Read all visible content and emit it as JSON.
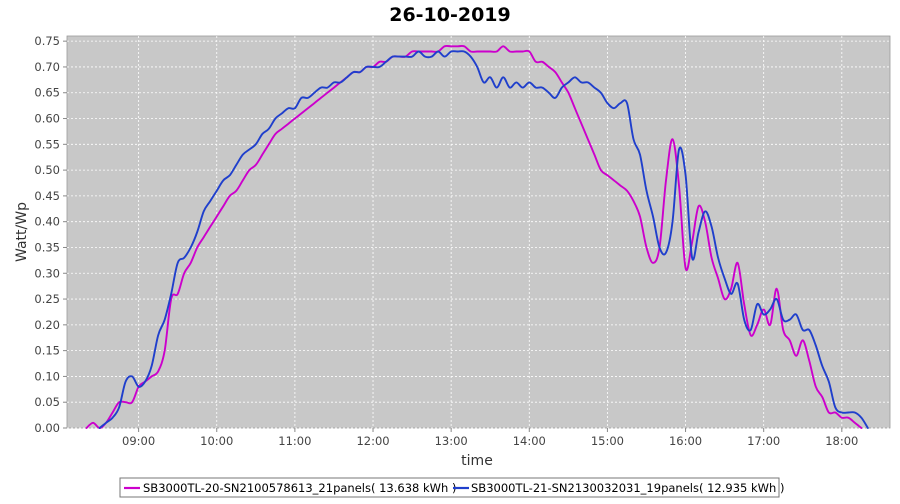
{
  "chart_data": {
    "type": "line",
    "title": "26-10-2019",
    "xlabel": "time",
    "ylabel": "Watt/Wp",
    "x_ticks": [
      "09:00",
      "10:00",
      "11:00",
      "12:00",
      "13:00",
      "14:00",
      "15:00",
      "16:00",
      "17:00",
      "18:00"
    ],
    "y_ticks": [
      "0.00",
      "0.05",
      "0.10",
      "0.15",
      "0.20",
      "0.25",
      "0.30",
      "0.35",
      "0.40",
      "0.45",
      "0.50",
      "0.55",
      "0.60",
      "0.65",
      "0.70",
      "0.75"
    ],
    "xlim": [
      "08:05",
      "18:37"
    ],
    "ylim": [
      0,
      0.76
    ],
    "grid": true,
    "legend_position": "bottom",
    "colors": {
      "plot_bg": "#c8c8c8",
      "grid": "#ffffff"
    },
    "series": [
      {
        "name": "SB3000TL-20-SN2100578613_21panels( 13.638 kWh )",
        "color": "#cc00cc",
        "points": [
          [
            "08:20",
            0.0
          ],
          [
            "08:25",
            0.01
          ],
          [
            "08:30",
            0.0
          ],
          [
            "08:35",
            0.01
          ],
          [
            "08:40",
            0.03
          ],
          [
            "08:45",
            0.05
          ],
          [
            "08:50",
            0.05
          ],
          [
            "08:55",
            0.05
          ],
          [
            "09:00",
            0.08
          ],
          [
            "09:05",
            0.09
          ],
          [
            "09:10",
            0.1
          ],
          [
            "09:15",
            0.11
          ],
          [
            "09:20",
            0.15
          ],
          [
            "09:25",
            0.25
          ],
          [
            "09:30",
            0.26
          ],
          [
            "09:35",
            0.3
          ],
          [
            "09:40",
            0.32
          ],
          [
            "09:45",
            0.35
          ],
          [
            "09:50",
            0.37
          ],
          [
            "09:55",
            0.39
          ],
          [
            "10:00",
            0.41
          ],
          [
            "10:05",
            0.43
          ],
          [
            "10:10",
            0.45
          ],
          [
            "10:15",
            0.46
          ],
          [
            "10:20",
            0.48
          ],
          [
            "10:25",
            0.5
          ],
          [
            "10:30",
            0.51
          ],
          [
            "10:35",
            0.53
          ],
          [
            "10:40",
            0.55
          ],
          [
            "10:45",
            0.57
          ],
          [
            "10:50",
            0.58
          ],
          [
            "10:55",
            0.59
          ],
          [
            "11:00",
            0.6
          ],
          [
            "11:05",
            0.61
          ],
          [
            "11:10",
            0.62
          ],
          [
            "11:15",
            0.63
          ],
          [
            "11:20",
            0.64
          ],
          [
            "11:25",
            0.65
          ],
          [
            "11:30",
            0.66
          ],
          [
            "11:35",
            0.67
          ],
          [
            "11:40",
            0.68
          ],
          [
            "11:45",
            0.69
          ],
          [
            "11:50",
            0.69
          ],
          [
            "11:55",
            0.7
          ],
          [
            "12:00",
            0.7
          ],
          [
            "12:05",
            0.71
          ],
          [
            "12:10",
            0.71
          ],
          [
            "12:15",
            0.72
          ],
          [
            "12:20",
            0.72
          ],
          [
            "12:25",
            0.72
          ],
          [
            "12:30",
            0.73
          ],
          [
            "12:35",
            0.73
          ],
          [
            "12:40",
            0.73
          ],
          [
            "12:45",
            0.73
          ],
          [
            "12:50",
            0.73
          ],
          [
            "12:55",
            0.74
          ],
          [
            "13:00",
            0.74
          ],
          [
            "13:05",
            0.74
          ],
          [
            "13:10",
            0.74
          ],
          [
            "13:15",
            0.73
          ],
          [
            "13:20",
            0.73
          ],
          [
            "13:25",
            0.73
          ],
          [
            "13:30",
            0.73
          ],
          [
            "13:35",
            0.73
          ],
          [
            "13:40",
            0.74
          ],
          [
            "13:45",
            0.73
          ],
          [
            "13:50",
            0.73
          ],
          [
            "13:55",
            0.73
          ],
          [
            "14:00",
            0.73
          ],
          [
            "14:05",
            0.71
          ],
          [
            "14:10",
            0.71
          ],
          [
            "14:15",
            0.7
          ],
          [
            "14:20",
            0.69
          ],
          [
            "14:25",
            0.67
          ],
          [
            "14:30",
            0.65
          ],
          [
            "14:35",
            0.62
          ],
          [
            "14:40",
            0.59
          ],
          [
            "14:45",
            0.56
          ],
          [
            "14:50",
            0.53
          ],
          [
            "14:55",
            0.5
          ],
          [
            "15:00",
            0.49
          ],
          [
            "15:05",
            0.48
          ],
          [
            "15:10",
            0.47
          ],
          [
            "15:15",
            0.46
          ],
          [
            "15:20",
            0.44
          ],
          [
            "15:25",
            0.41
          ],
          [
            "15:30",
            0.35
          ],
          [
            "15:35",
            0.32
          ],
          [
            "15:40",
            0.35
          ],
          [
            "15:45",
            0.48
          ],
          [
            "15:50",
            0.56
          ],
          [
            "15:55",
            0.47
          ],
          [
            "16:00",
            0.31
          ],
          [
            "16:05",
            0.36
          ],
          [
            "16:10",
            0.43
          ],
          [
            "16:15",
            0.4
          ],
          [
            "16:20",
            0.33
          ],
          [
            "16:25",
            0.29
          ],
          [
            "16:30",
            0.25
          ],
          [
            "16:35",
            0.27
          ],
          [
            "16:40",
            0.32
          ],
          [
            "16:45",
            0.24
          ],
          [
            "16:50",
            0.18
          ],
          [
            "16:55",
            0.2
          ],
          [
            "17:00",
            0.23
          ],
          [
            "17:05",
            0.2
          ],
          [
            "17:10",
            0.27
          ],
          [
            "17:15",
            0.19
          ],
          [
            "17:20",
            0.17
          ],
          [
            "17:25",
            0.14
          ],
          [
            "17:30",
            0.17
          ],
          [
            "17:35",
            0.13
          ],
          [
            "17:40",
            0.08
          ],
          [
            "17:45",
            0.06
          ],
          [
            "17:50",
            0.03
          ],
          [
            "17:55",
            0.03
          ],
          [
            "18:00",
            0.02
          ],
          [
            "18:05",
            0.02
          ],
          [
            "18:10",
            0.01
          ],
          [
            "18:15",
            0.0
          ]
        ]
      },
      {
        "name": "SB3000TL-21-SN2130032031_19panels( 12.935 kWh )",
        "color": "#1f3fcc",
        "points": [
          [
            "08:30",
            0.0
          ],
          [
            "08:35",
            0.01
          ],
          [
            "08:40",
            0.02
          ],
          [
            "08:45",
            0.04
          ],
          [
            "08:50",
            0.09
          ],
          [
            "08:55",
            0.1
          ],
          [
            "09:00",
            0.08
          ],
          [
            "09:05",
            0.09
          ],
          [
            "09:10",
            0.12
          ],
          [
            "09:15",
            0.18
          ],
          [
            "09:20",
            0.21
          ],
          [
            "09:25",
            0.26
          ],
          [
            "09:30",
            0.32
          ],
          [
            "09:35",
            0.33
          ],
          [
            "09:40",
            0.35
          ],
          [
            "09:45",
            0.38
          ],
          [
            "09:50",
            0.42
          ],
          [
            "09:55",
            0.44
          ],
          [
            "10:00",
            0.46
          ],
          [
            "10:05",
            0.48
          ],
          [
            "10:10",
            0.49
          ],
          [
            "10:15",
            0.51
          ],
          [
            "10:20",
            0.53
          ],
          [
            "10:25",
            0.54
          ],
          [
            "10:30",
            0.55
          ],
          [
            "10:35",
            0.57
          ],
          [
            "10:40",
            0.58
          ],
          [
            "10:45",
            0.6
          ],
          [
            "10:50",
            0.61
          ],
          [
            "10:55",
            0.62
          ],
          [
            "11:00",
            0.62
          ],
          [
            "11:05",
            0.64
          ],
          [
            "11:10",
            0.64
          ],
          [
            "11:15",
            0.65
          ],
          [
            "11:20",
            0.66
          ],
          [
            "11:25",
            0.66
          ],
          [
            "11:30",
            0.67
          ],
          [
            "11:35",
            0.67
          ],
          [
            "11:40",
            0.68
          ],
          [
            "11:45",
            0.69
          ],
          [
            "11:50",
            0.69
          ],
          [
            "11:55",
            0.7
          ],
          [
            "12:00",
            0.7
          ],
          [
            "12:05",
            0.7
          ],
          [
            "12:10",
            0.71
          ],
          [
            "12:15",
            0.72
          ],
          [
            "12:20",
            0.72
          ],
          [
            "12:25",
            0.72
          ],
          [
            "12:30",
            0.72
          ],
          [
            "12:35",
            0.73
          ],
          [
            "12:40",
            0.72
          ],
          [
            "12:45",
            0.72
          ],
          [
            "12:50",
            0.73
          ],
          [
            "12:55",
            0.72
          ],
          [
            "13:00",
            0.73
          ],
          [
            "13:05",
            0.73
          ],
          [
            "13:10",
            0.73
          ],
          [
            "13:15",
            0.72
          ],
          [
            "13:20",
            0.7
          ],
          [
            "13:25",
            0.67
          ],
          [
            "13:30",
            0.68
          ],
          [
            "13:35",
            0.66
          ],
          [
            "13:40",
            0.68
          ],
          [
            "13:45",
            0.66
          ],
          [
            "13:50",
            0.67
          ],
          [
            "13:55",
            0.66
          ],
          [
            "14:00",
            0.67
          ],
          [
            "14:05",
            0.66
          ],
          [
            "14:10",
            0.66
          ],
          [
            "14:15",
            0.65
          ],
          [
            "14:20",
            0.64
          ],
          [
            "14:25",
            0.66
          ],
          [
            "14:30",
            0.67
          ],
          [
            "14:35",
            0.68
          ],
          [
            "14:40",
            0.67
          ],
          [
            "14:45",
            0.67
          ],
          [
            "14:50",
            0.66
          ],
          [
            "14:55",
            0.65
          ],
          [
            "15:00",
            0.63
          ],
          [
            "15:05",
            0.62
          ],
          [
            "15:10",
            0.63
          ],
          [
            "15:15",
            0.63
          ],
          [
            "15:20",
            0.56
          ],
          [
            "15:25",
            0.53
          ],
          [
            "15:30",
            0.46
          ],
          [
            "15:35",
            0.41
          ],
          [
            "15:40",
            0.35
          ],
          [
            "15:45",
            0.34
          ],
          [
            "15:50",
            0.4
          ],
          [
            "15:55",
            0.54
          ],
          [
            "16:00",
            0.49
          ],
          [
            "16:05",
            0.33
          ],
          [
            "16:10",
            0.38
          ],
          [
            "16:15",
            0.42
          ],
          [
            "16:20",
            0.39
          ],
          [
            "16:25",
            0.33
          ],
          [
            "16:30",
            0.29
          ],
          [
            "16:35",
            0.26
          ],
          [
            "16:40",
            0.28
          ],
          [
            "16:45",
            0.21
          ],
          [
            "16:50",
            0.19
          ],
          [
            "16:55",
            0.24
          ],
          [
            "17:00",
            0.22
          ],
          [
            "17:05",
            0.23
          ],
          [
            "17:10",
            0.25
          ],
          [
            "17:15",
            0.21
          ],
          [
            "17:20",
            0.21
          ],
          [
            "17:25",
            0.22
          ],
          [
            "17:30",
            0.19
          ],
          [
            "17:35",
            0.19
          ],
          [
            "17:40",
            0.16
          ],
          [
            "17:45",
            0.12
          ],
          [
            "17:50",
            0.09
          ],
          [
            "17:55",
            0.04
          ],
          [
            "18:00",
            0.03
          ],
          [
            "18:05",
            0.03
          ],
          [
            "18:10",
            0.03
          ],
          [
            "18:15",
            0.02
          ],
          [
            "18:20",
            0.0
          ]
        ]
      }
    ]
  }
}
